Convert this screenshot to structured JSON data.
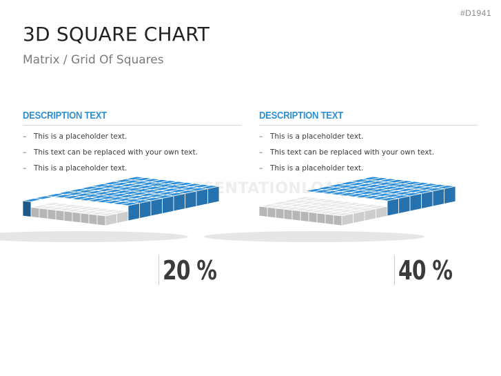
{
  "code_tag": "#D1941",
  "title": "3D SQUARE CHART",
  "subtitle": "Matrix / Grid Of Squares",
  "watermark": "PRESENTATIONLOAD",
  "bullet_dash": "–",
  "panels": [
    {
      "heading": "DESCRIPTION TEXT",
      "bullets": [
        "This is a placeholder text.",
        "This text can be replaced with your own text.",
        "This is a placeholder text."
      ],
      "percent_label": "20 %"
    },
    {
      "heading": "DESCRIPTION TEXT",
      "bullets": [
        "This is a placeholder text.",
        "This text can be replaced with your own text.",
        "This is a placeholder text."
      ],
      "percent_label": "40 %"
    }
  ],
  "chart_data": [
    {
      "type": "grid",
      "rows": 10,
      "cols": 10,
      "highlighted_percent": 20,
      "colors": {
        "base": "#2f8fdb",
        "highlight": "#e9e9e9"
      }
    },
    {
      "type": "grid",
      "rows": 10,
      "cols": 10,
      "highlighted_percent": 40,
      "colors": {
        "base": "#2f8fdb",
        "highlight": "#e9e9e9"
      }
    }
  ]
}
